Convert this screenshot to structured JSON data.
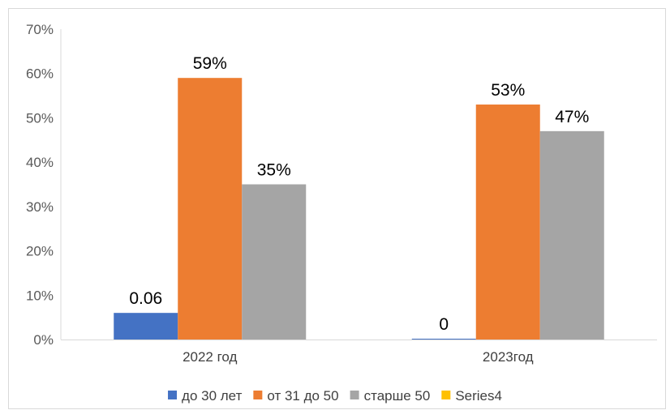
{
  "chart_data": {
    "type": "bar",
    "categories": [
      "2022 год",
      "2023год"
    ],
    "series": [
      {
        "name": "до 30 лет",
        "color": "#4472C4",
        "values": [
          0.06,
          0
        ],
        "labels": [
          "0.06",
          "0"
        ]
      },
      {
        "name": "от 31 до 50",
        "color": "#ED7D31",
        "values": [
          0.59,
          0.53
        ],
        "labels": [
          "59%",
          "53%"
        ]
      },
      {
        "name": "старше 50",
        "color": "#A5A5A5",
        "values": [
          0.35,
          0.47
        ],
        "labels": [
          "35%",
          "47%"
        ]
      },
      {
        "name": "Series4",
        "color": "#FFC000",
        "values": [
          null,
          null
        ],
        "labels": [
          "",
          ""
        ]
      }
    ],
    "y_ticks": [
      "0%",
      "10%",
      "20%",
      "30%",
      "40%",
      "50%",
      "60%",
      "70%"
    ],
    "ylim": [
      0,
      0.7
    ],
    "legend_position": "bottom",
    "grid": false
  }
}
